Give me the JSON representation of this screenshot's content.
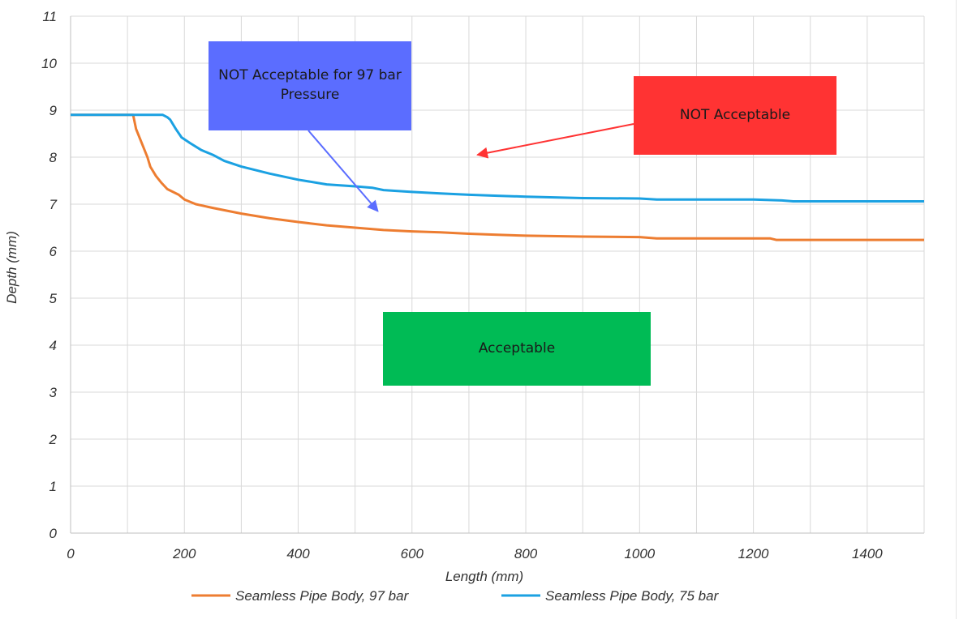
{
  "chart_data": {
    "type": "line",
    "xlabel": "Length (mm)",
    "ylabel": "Depth (mm)",
    "xlim": [
      0,
      1500
    ],
    "ylim": [
      0,
      11
    ],
    "x_ticks": [
      0,
      200,
      400,
      600,
      800,
      1000,
      1200,
      1400
    ],
    "y_ticks": [
      0,
      1,
      2,
      3,
      4,
      5,
      6,
      7,
      8,
      9,
      10,
      11
    ],
    "grid": true,
    "legend_position": "bottom",
    "series": [
      {
        "name": "Seamless Pipe Body, 97 bar",
        "color": "#ed7d31",
        "points": [
          [
            0,
            8.9
          ],
          [
            110,
            8.9
          ],
          [
            115,
            8.6
          ],
          [
            125,
            8.3
          ],
          [
            135,
            8.0
          ],
          [
            140,
            7.8
          ],
          [
            150,
            7.6
          ],
          [
            160,
            7.45
          ],
          [
            170,
            7.32
          ],
          [
            190,
            7.2
          ],
          [
            200,
            7.1
          ],
          [
            220,
            7.0
          ],
          [
            250,
            6.92
          ],
          [
            300,
            6.8
          ],
          [
            350,
            6.7
          ],
          [
            400,
            6.62
          ],
          [
            450,
            6.55
          ],
          [
            500,
            6.5
          ],
          [
            550,
            6.45
          ],
          [
            600,
            6.42
          ],
          [
            650,
            6.4
          ],
          [
            700,
            6.37
          ],
          [
            750,
            6.35
          ],
          [
            800,
            6.33
          ],
          [
            900,
            6.31
          ],
          [
            1000,
            6.3
          ],
          [
            1030,
            6.27
          ],
          [
            1100,
            6.27
          ],
          [
            1200,
            6.27
          ],
          [
            1230,
            6.27
          ],
          [
            1240,
            6.24
          ],
          [
            1300,
            6.24
          ],
          [
            1400,
            6.24
          ],
          [
            1500,
            6.24
          ]
        ]
      },
      {
        "name": "Seamless Pipe Body, 75 bar",
        "color": "#1ba1e2",
        "points": [
          [
            0,
            8.9
          ],
          [
            162,
            8.9
          ],
          [
            170,
            8.85
          ],
          [
            175,
            8.8
          ],
          [
            185,
            8.6
          ],
          [
            195,
            8.42
          ],
          [
            210,
            8.3
          ],
          [
            230,
            8.15
          ],
          [
            250,
            8.05
          ],
          [
            270,
            7.92
          ],
          [
            300,
            7.8
          ],
          [
            350,
            7.65
          ],
          [
            400,
            7.52
          ],
          [
            450,
            7.42
          ],
          [
            500,
            7.38
          ],
          [
            530,
            7.35
          ],
          [
            550,
            7.3
          ],
          [
            600,
            7.26
          ],
          [
            650,
            7.23
          ],
          [
            700,
            7.2
          ],
          [
            750,
            7.18
          ],
          [
            800,
            7.16
          ],
          [
            900,
            7.13
          ],
          [
            1000,
            7.12
          ],
          [
            1030,
            7.1
          ],
          [
            1100,
            7.1
          ],
          [
            1200,
            7.1
          ],
          [
            1250,
            7.08
          ],
          [
            1270,
            7.06
          ],
          [
            1300,
            7.06
          ],
          [
            1400,
            7.06
          ],
          [
            1500,
            7.06
          ]
        ]
      }
    ],
    "annotations": [
      {
        "text": "NOT Acceptable for 97 bar Pressure",
        "color": "#5b6dff",
        "arrow_color": "#5b6dff",
        "arrow_target": [
          540,
          6.85
        ]
      },
      {
        "text": "NOT Acceptable",
        "color": "#ff3333",
        "arrow_color": "#ff3333",
        "arrow_target": [
          715,
          8.05
        ]
      },
      {
        "text": "Acceptable",
        "color": "#00bb55"
      }
    ]
  }
}
